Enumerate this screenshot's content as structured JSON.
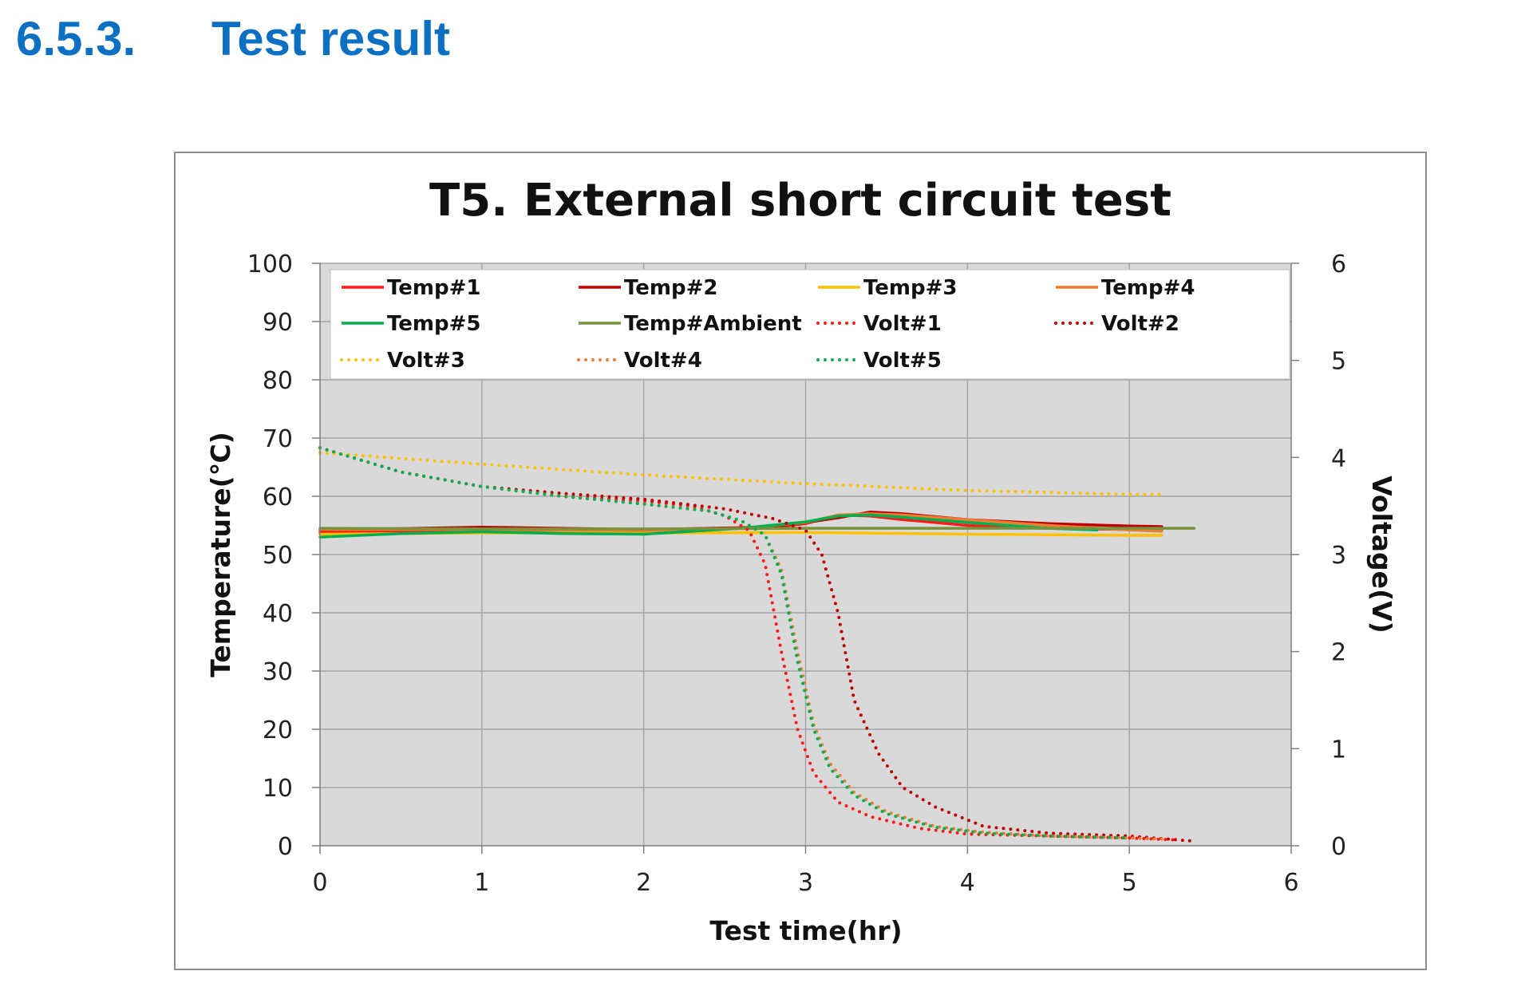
{
  "section": {
    "number": "6.5.3.",
    "title": "Test result"
  },
  "chart_data": {
    "type": "line",
    "title": "T5. External short circuit test",
    "xlabel": "Test time(hr)",
    "ylabel": "Temperature(℃)",
    "y2label": "Voltage(V)",
    "xlim": [
      0,
      6
    ],
    "ylim": [
      0,
      100
    ],
    "y2lim": [
      0,
      6
    ],
    "xticks": [
      "0",
      "1",
      "2",
      "3",
      "4",
      "5",
      "6"
    ],
    "yticks": [
      "0",
      "10",
      "20",
      "30",
      "40",
      "50",
      "60",
      "70",
      "80",
      "90",
      "100"
    ],
    "y2ticks": [
      "0",
      "1",
      "2",
      "3",
      "4",
      "5",
      "6"
    ],
    "grid": true,
    "legend_position": "top-inside",
    "series": [
      {
        "name": "Temp#1",
        "axis": "left",
        "style": "solid",
        "color": "#ff1a1a",
        "x": [
          0,
          1,
          2,
          2.6,
          2.8,
          3.0,
          3.2,
          3.4,
          3.6,
          4.0,
          4.5,
          5.0,
          5.2
        ],
        "y": [
          53.8,
          54.2,
          54.0,
          54.5,
          54.7,
          55.3,
          56.8,
          56.6,
          56.0,
          55.0,
          54.5,
          54.3,
          54.2
        ]
      },
      {
        "name": "Temp#2",
        "axis": "left",
        "style": "solid",
        "color": "#c00000",
        "x": [
          0,
          1,
          2,
          2.6,
          2.8,
          3.0,
          3.2,
          3.4,
          3.6,
          4.0,
          4.5,
          5.0,
          5.2
        ],
        "y": [
          54.2,
          54.7,
          54.3,
          54.6,
          54.8,
          55.5,
          56.3,
          57.3,
          57.0,
          56.0,
          55.3,
          54.9,
          54.8
        ]
      },
      {
        "name": "Temp#3",
        "axis": "left",
        "style": "solid",
        "color": "#ffc000",
        "x": [
          0,
          1,
          2,
          3,
          4,
          5,
          5.2
        ],
        "y": [
          53.5,
          53.7,
          53.7,
          53.8,
          53.5,
          53.3,
          53.3
        ]
      },
      {
        "name": "Temp#4",
        "axis": "left",
        "style": "solid",
        "color": "#ed7d31",
        "x": [
          0,
          1,
          2,
          2.6,
          3.0,
          3.2,
          3.4,
          3.6,
          4.0,
          4.5,
          5.0,
          5.2
        ],
        "y": [
          54.3,
          54.3,
          54.1,
          54.5,
          55.5,
          56.8,
          57.0,
          56.8,
          56.0,
          55.0,
          54.2,
          54.0
        ]
      },
      {
        "name": "Temp#5",
        "axis": "left",
        "style": "solid",
        "color": "#00b050",
        "x": [
          0,
          0.5,
          1,
          1.5,
          2,
          2.6,
          3.0,
          3.2,
          3.4,
          3.6,
          4.0,
          4.5,
          4.8
        ],
        "y": [
          53.0,
          53.6,
          53.9,
          53.6,
          53.5,
          54.5,
          55.6,
          56.6,
          56.8,
          56.4,
          55.5,
          54.5,
          54.2
        ]
      },
      {
        "name": "Temp#Ambient",
        "axis": "left",
        "style": "solid",
        "color": "#77933c",
        "x": [
          0,
          1,
          2,
          3,
          4,
          5,
          5.4
        ],
        "y": [
          54.5,
          54.4,
          54.4,
          54.5,
          54.5,
          54.5,
          54.5
        ]
      },
      {
        "name": "Volt#1",
        "axis": "right",
        "style": "dotted",
        "color": "#ff1a1a",
        "x": [
          0,
          0.5,
          1,
          1.5,
          2,
          2.3,
          2.5,
          2.65,
          2.75,
          2.85,
          2.95,
          3.05,
          3.2,
          3.4,
          3.7,
          4.0,
          4.5,
          5.0,
          5.3
        ],
        "y": [
          4.1,
          3.85,
          3.7,
          3.6,
          3.55,
          3.5,
          3.4,
          3.25,
          2.9,
          2.0,
          1.2,
          0.75,
          0.45,
          0.3,
          0.18,
          0.12,
          0.1,
          0.08,
          0.06
        ]
      },
      {
        "name": "Volt#2",
        "axis": "right",
        "style": "dotted",
        "color": "#c00000",
        "x": [
          0,
          0.5,
          1,
          1.5,
          2,
          2.5,
          2.8,
          3.0,
          3.1,
          3.2,
          3.3,
          3.45,
          3.6,
          3.8,
          4.1,
          4.5,
          5.0,
          5.38
        ],
        "y": [
          4.1,
          3.85,
          3.7,
          3.63,
          3.57,
          3.47,
          3.37,
          3.25,
          3.0,
          2.4,
          1.5,
          0.95,
          0.6,
          0.4,
          0.2,
          0.13,
          0.1,
          0.05
        ]
      },
      {
        "name": "Volt#3",
        "axis": "right",
        "style": "dotted",
        "color": "#ffc000",
        "x": [
          0,
          1,
          2,
          3,
          4,
          5,
          5.2
        ],
        "y": [
          4.05,
          3.93,
          3.82,
          3.73,
          3.66,
          3.62,
          3.62
        ]
      },
      {
        "name": "Volt#4",
        "axis": "right",
        "style": "dotted",
        "color": "#ed7d31",
        "x": [
          0,
          0.5,
          1,
          1.5,
          2,
          2.4,
          2.6,
          2.75,
          2.85,
          2.95,
          3.05,
          3.15,
          3.3,
          3.5,
          3.8,
          4.1,
          4.5,
          5.0,
          5.2
        ],
        "y": [
          4.1,
          3.85,
          3.7,
          3.6,
          3.52,
          3.45,
          3.35,
          3.2,
          2.85,
          2.0,
          1.25,
          0.85,
          0.55,
          0.35,
          0.2,
          0.14,
          0.1,
          0.08,
          0.07
        ]
      },
      {
        "name": "Volt#5",
        "axis": "right",
        "style": "dotted",
        "color": "#00b050",
        "x": [
          0,
          0.5,
          1,
          1.5,
          2,
          2.4,
          2.6,
          2.75,
          2.85,
          2.95,
          3.05,
          3.15,
          3.3,
          3.5,
          3.8,
          4.1,
          4.5,
          5.0
        ],
        "y": [
          4.1,
          3.85,
          3.7,
          3.6,
          3.52,
          3.45,
          3.35,
          3.2,
          2.8,
          1.9,
          1.2,
          0.8,
          0.52,
          0.33,
          0.19,
          0.13,
          0.1,
          0.08
        ]
      }
    ]
  }
}
